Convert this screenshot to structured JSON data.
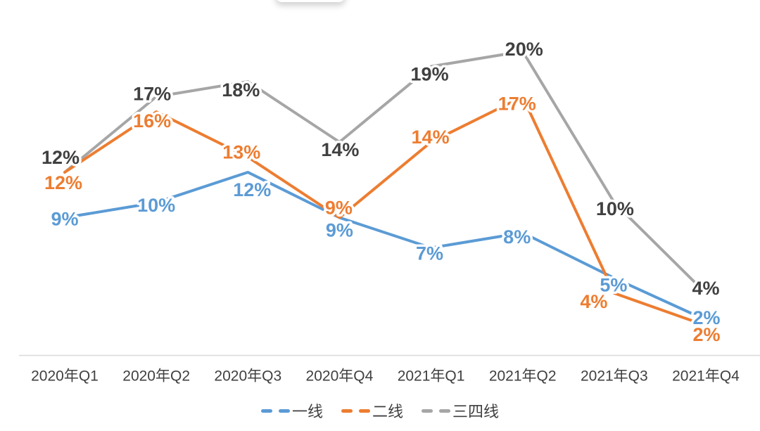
{
  "page": {
    "background": "#ffffff"
  },
  "chart_data": {
    "type": "line",
    "title": "",
    "xlabel": "",
    "ylabel": "",
    "categories": [
      "2020年Q1",
      "2020年Q2",
      "2020年Q3",
      "2020年Q4",
      "2021年Q1",
      "2021年Q2",
      "2021年Q3",
      "2021年Q4"
    ],
    "series": [
      {
        "name": "一线",
        "color": "#5B9BD5",
        "label_color": "#5B9BD5",
        "values": [
          9,
          10,
          12,
          9,
          7,
          8,
          5,
          2
        ]
      },
      {
        "name": "二线",
        "color": "#ED7D31",
        "label_color": "#ED7D31",
        "values": [
          12,
          16,
          13,
          9,
          14,
          17,
          4,
          2
        ]
      },
      {
        "name": "三四线",
        "color": "#A6A6A6",
        "label_color": "#404040",
        "values": [
          12,
          17,
          18,
          14,
          19,
          20,
          10,
          4
        ]
      }
    ],
    "label_suffix": "%",
    "labels_show": true,
    "grid": false,
    "ylim": [
      0,
      22
    ],
    "axis_line_color": "#D9D9D9",
    "axis_label_color": "#404040",
    "legend_position": "bottom",
    "legend_text_color": "#3F3F3F",
    "legend_marker_style": "dashed"
  }
}
